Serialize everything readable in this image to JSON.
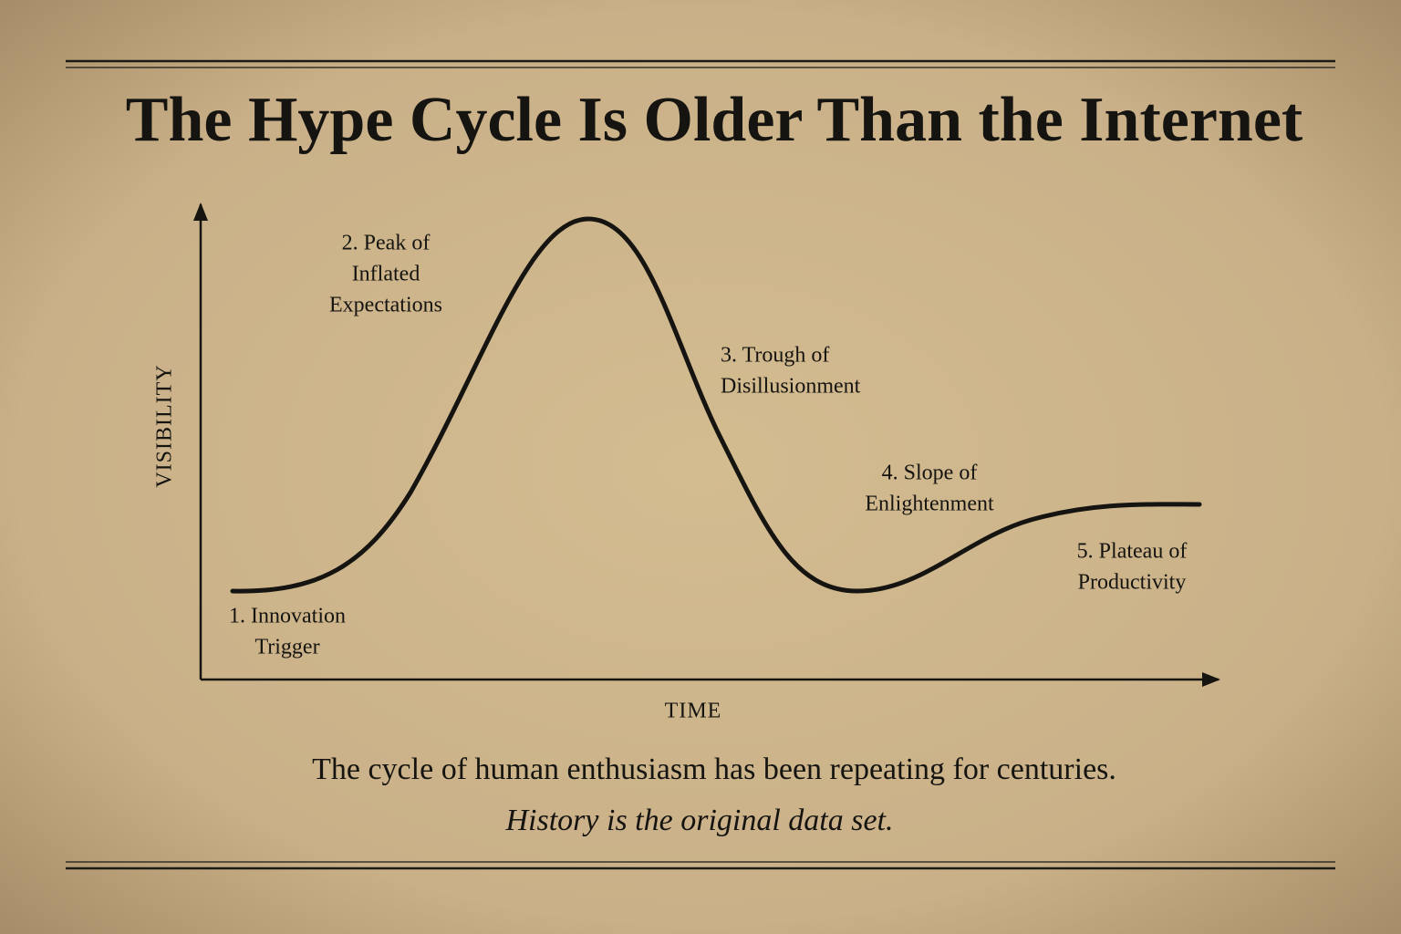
{
  "title": "The Hype Cycle Is Older Than the Internet",
  "axes": {
    "y_label": "VISIBILITY",
    "x_label": "TIME"
  },
  "phases": [
    {
      "lines": [
        "1. Innovation",
        "Trigger"
      ]
    },
    {
      "lines": [
        "2. Peak of",
        "Inflated",
        "Expectations"
      ]
    },
    {
      "lines": [
        "3. Trough of",
        "Disillusionment"
      ]
    },
    {
      "lines": [
        "4. Slope of",
        "Enlightenment"
      ]
    },
    {
      "lines": [
        "5. Plateau of",
        "Productivity"
      ]
    }
  ],
  "caption": "The cycle of human enthusiasm has been repeating for centuries.",
  "tagline": "History is the original data set."
}
